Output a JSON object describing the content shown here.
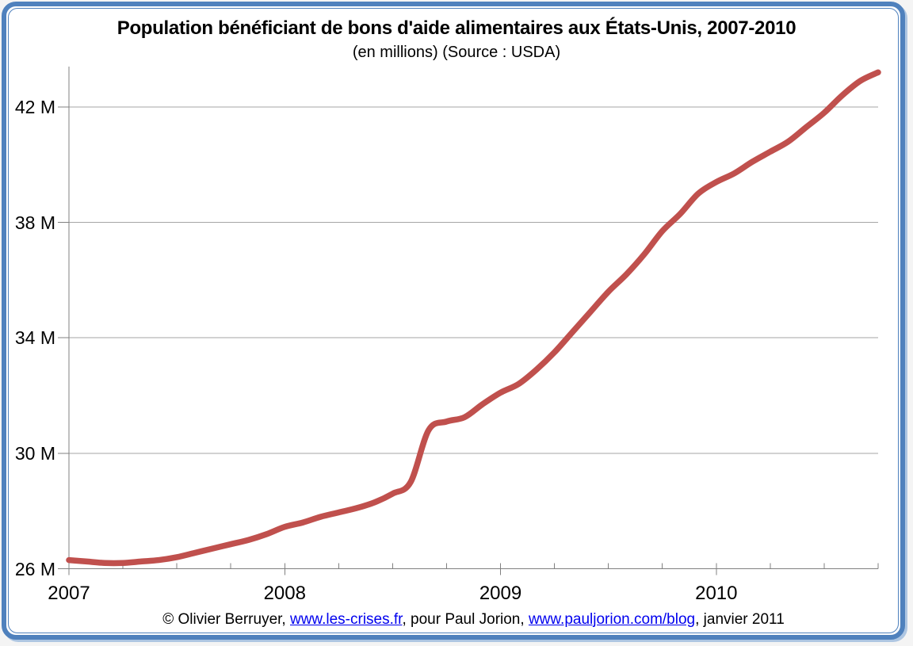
{
  "header": {
    "title": "Population bénéficiant de bons d'aide alimentaires aux États-Unis, 2007-2010",
    "subtitle": "(en millions) (Source : USDA)"
  },
  "footer": {
    "copyright_prefix": "© Olivier Berruyer, ",
    "link_les_crises": "www.les-crises.fr",
    "middle_text": ", pour Paul Jorion, ",
    "link_pauljorion": "www.pauljorion.com/blog",
    "suffix_text": ", janvier 2011",
    "link_color": "#0000EE"
  },
  "colors": {
    "frame_blue": "#4F81BD",
    "frame_shadow": "#AEC6E2",
    "line_red": "#C0504D",
    "grid_gray": "#A6A6A6",
    "axis_gray": "#808080"
  },
  "chart_data": {
    "type": "line",
    "title": "Population bénéficiant de bons d'aide alimentaires aux États-Unis, 2007-2010",
    "subtitle": "(en millions) (Source : USDA)",
    "source": "USDA",
    "unit": "millions de personnes",
    "smoothed": true,
    "grid": "horizontal",
    "line_color": "#C0504D",
    "grid_color": "#A6A6A6",
    "axis_color": "#808080",
    "xlim": [
      2007.0,
      2010.75
    ],
    "ylim": [
      26,
      43.4
    ],
    "y_ticks": [
      {
        "value": 26,
        "label": "26 M"
      },
      {
        "value": 30,
        "label": "30 M"
      },
      {
        "value": 34,
        "label": "34 M"
      },
      {
        "value": 38,
        "label": "38 M"
      },
      {
        "value": 42,
        "label": "42 M"
      }
    ],
    "x_major_ticks": [
      {
        "value": 2007,
        "label": "2007"
      },
      {
        "value": 2008,
        "label": "2008"
      },
      {
        "value": 2009,
        "label": "2009"
      },
      {
        "value": 2010,
        "label": "2010"
      }
    ],
    "x_minor_tick_interval_years": 0.25,
    "points": [
      [
        "2007-01",
        26.3
      ],
      [
        "2007-02",
        26.25
      ],
      [
        "2007-03",
        26.2
      ],
      [
        "2007-04",
        26.2
      ],
      [
        "2007-05",
        26.25
      ],
      [
        "2007-06",
        26.3
      ],
      [
        "2007-07",
        26.4
      ],
      [
        "2007-08",
        26.55
      ],
      [
        "2007-09",
        26.7
      ],
      [
        "2007-10",
        26.85
      ],
      [
        "2007-11",
        27.0
      ],
      [
        "2007-12",
        27.2
      ],
      [
        "2008-01",
        27.45
      ],
      [
        "2008-02",
        27.6
      ],
      [
        "2008-03",
        27.8
      ],
      [
        "2008-04",
        27.95
      ],
      [
        "2008-05",
        28.1
      ],
      [
        "2008-06",
        28.3
      ],
      [
        "2008-07",
        28.6
      ],
      [
        "2008-08",
        29.0
      ],
      [
        "2008-09",
        30.8
      ],
      [
        "2008-10",
        31.1
      ],
      [
        "2008-11",
        31.25
      ],
      [
        "2008-12",
        31.7
      ],
      [
        "2009-01",
        32.1
      ],
      [
        "2009-02",
        32.4
      ],
      [
        "2009-03",
        32.9
      ],
      [
        "2009-04",
        33.5
      ],
      [
        "2009-05",
        34.2
      ],
      [
        "2009-06",
        34.9
      ],
      [
        "2009-07",
        35.6
      ],
      [
        "2009-08",
        36.2
      ],
      [
        "2009-09",
        36.9
      ],
      [
        "2009-10",
        37.7
      ],
      [
        "2009-11",
        38.3
      ],
      [
        "2009-12",
        39.0
      ],
      [
        "2010-01",
        39.4
      ],
      [
        "2010-02",
        39.7
      ],
      [
        "2010-03",
        40.1
      ],
      [
        "2010-04",
        40.45
      ],
      [
        "2010-05",
        40.8
      ],
      [
        "2010-06",
        41.3
      ],
      [
        "2010-07",
        41.8
      ],
      [
        "2010-08",
        42.4
      ],
      [
        "2010-09",
        42.9
      ],
      [
        "2010-10",
        43.2
      ]
    ]
  }
}
